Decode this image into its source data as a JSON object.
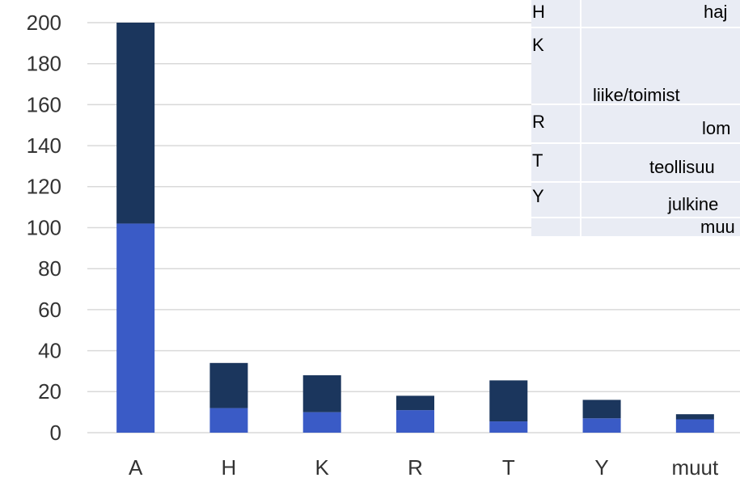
{
  "chart_data": {
    "type": "stacked_bar",
    "categories": [
      "A",
      "H",
      "K",
      "R",
      "T",
      "Y",
      "muut"
    ],
    "series": [
      {
        "color": "#3a5bc6",
        "values": [
          102,
          12,
          10,
          11,
          5.5,
          7,
          6.5
        ]
      },
      {
        "color": "#1b365d",
        "values": [
          98,
          22,
          18,
          7,
          20,
          9,
          2.5
        ]
      }
    ],
    "ylim": [
      0,
      200
    ],
    "yticks": [
      0,
      20,
      40,
      60,
      80,
      100,
      120,
      140,
      160,
      180,
      200
    ],
    "grid": true
  },
  "table": {
    "rows": [
      {
        "code": "H",
        "text": "haj"
      },
      {
        "code": "K",
        "text": "liike/toimist"
      },
      {
        "code": "R",
        "text": "lom"
      },
      {
        "code": "T",
        "text": "teollisuu"
      },
      {
        "code": "Y",
        "text": "julkine"
      },
      {
        "text": "muu"
      }
    ]
  }
}
